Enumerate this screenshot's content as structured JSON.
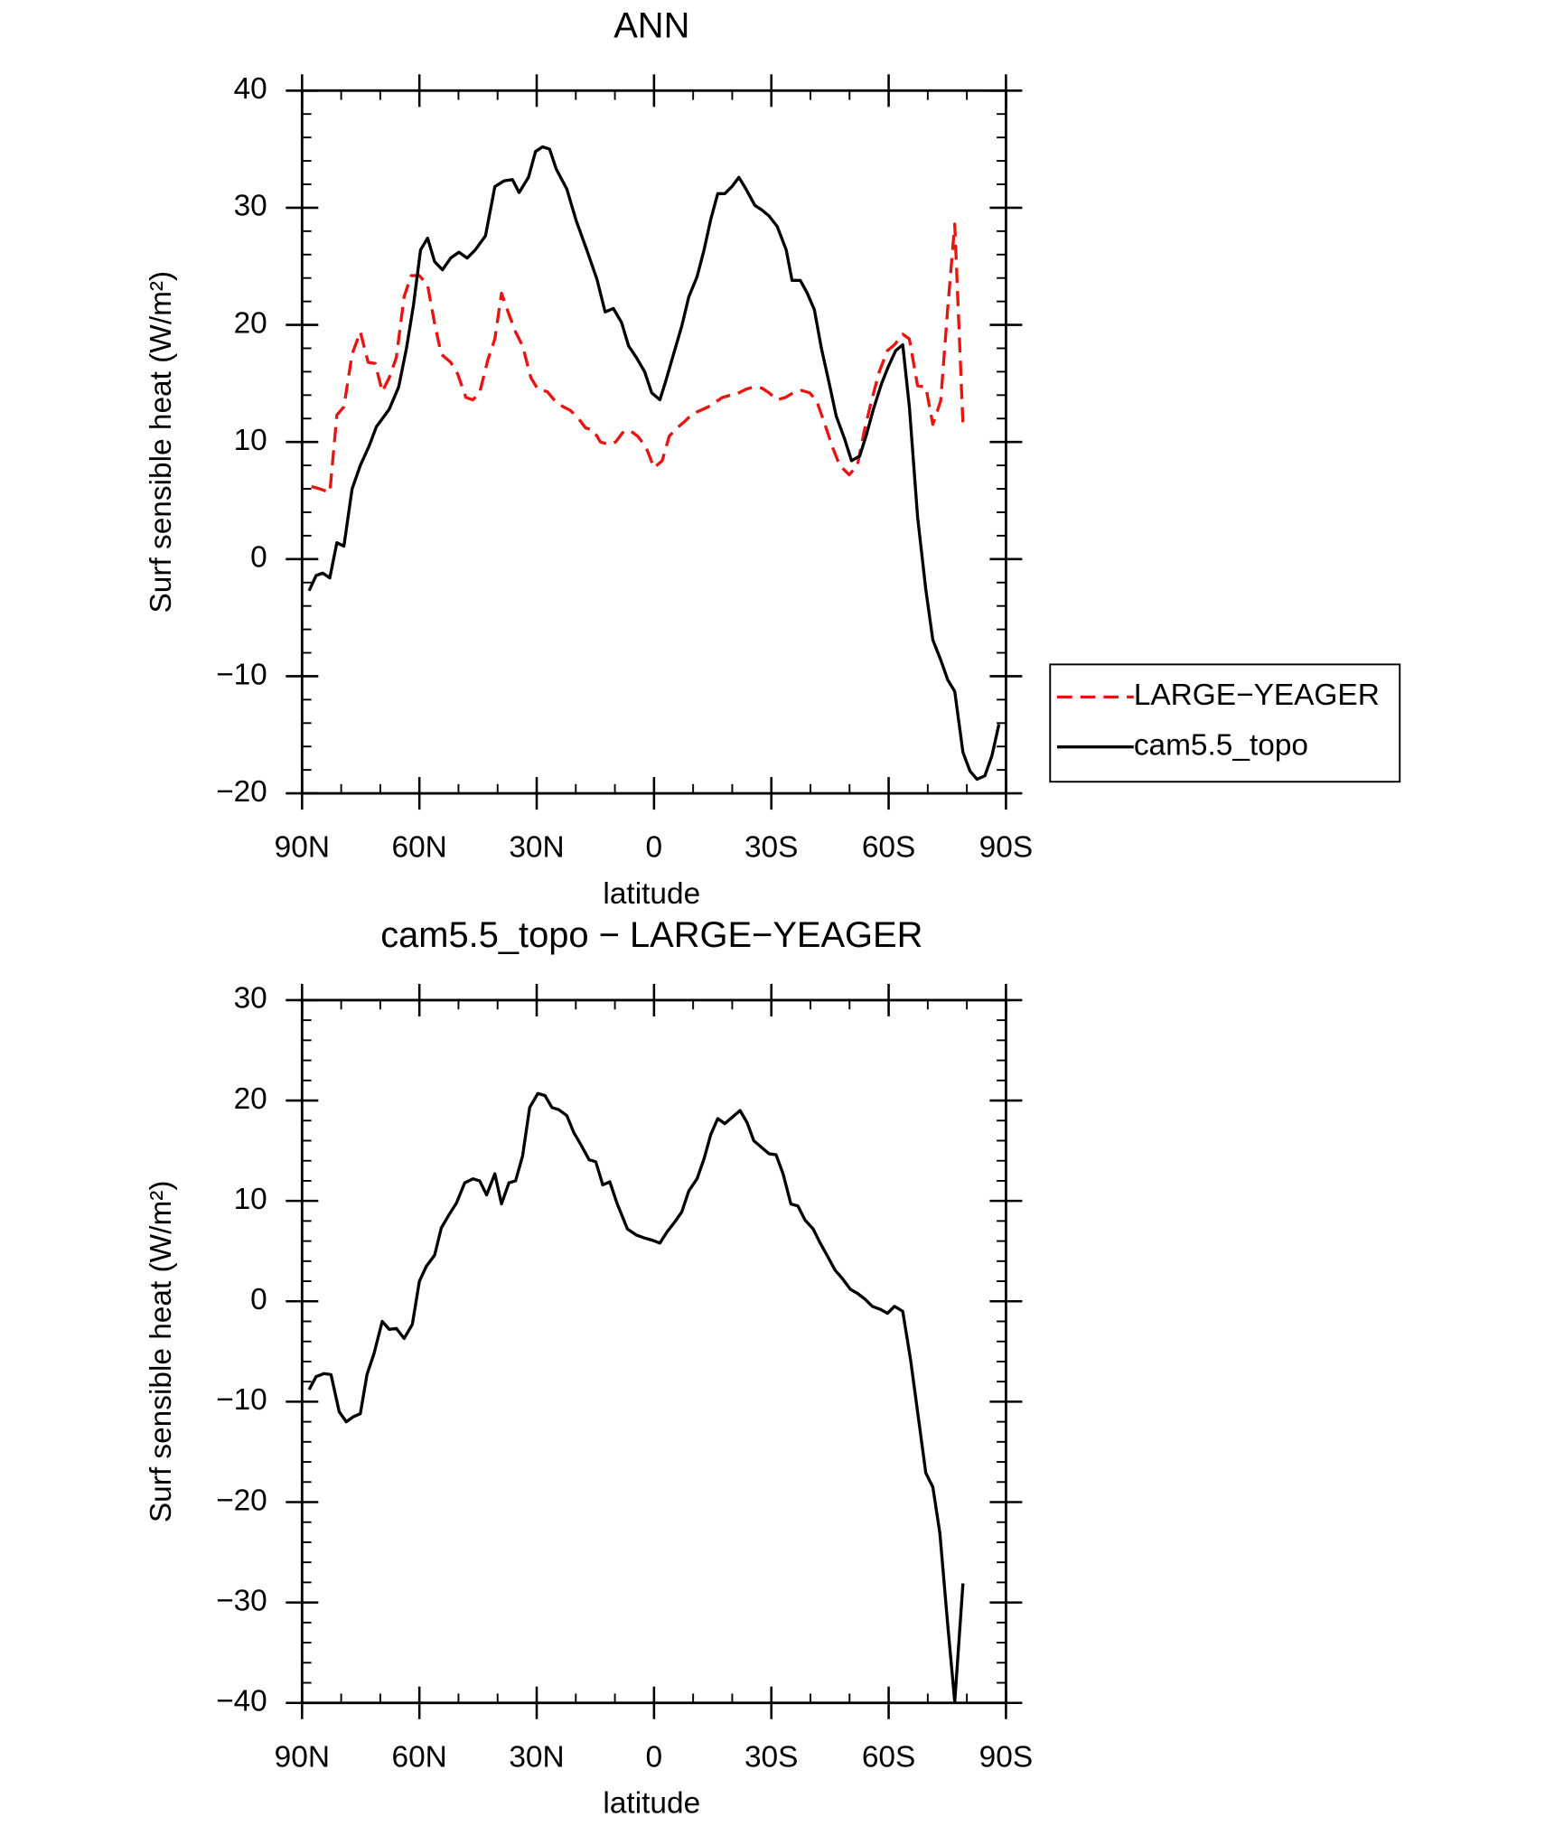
{
  "chart_data": [
    {
      "type": "line",
      "title": "ANN",
      "xlabel": "latitude",
      "ylabel": "Surf sensible heat (W/m²)",
      "xlim": [
        90,
        -90
      ],
      "xticks": [
        {
          "value": 90,
          "label": "90N"
        },
        {
          "value": 60,
          "label": "60N"
        },
        {
          "value": 30,
          "label": "30N"
        },
        0,
        {
          "value": -30,
          "label": "30S"
        },
        {
          "value": -60,
          "label": "60S"
        },
        {
          "value": -90,
          "label": "90S"
        }
      ],
      "ylim": [
        -20,
        40
      ],
      "yticks": [
        {
          "value": -20,
          "label": "−20"
        },
        {
          "value": -10,
          "label": "−10"
        },
        0,
        10,
        20,
        30,
        40
      ],
      "legend": "right",
      "series": [
        {
          "name": "LARGE−YEAGER",
          "color": "#e8140f",
          "dash": true,
          "x": [
            87.6,
            85.5,
            82.9,
            81.1,
            79.3,
            77.2,
            75.1,
            73.1,
            71.3,
            69.5,
            67.7,
            65.9,
            63.9,
            62.1,
            60.0,
            57.9,
            56.1,
            54.4,
            52.0,
            50.2,
            48.1,
            46.3,
            44.6,
            42.5,
            40.7,
            39.0,
            37.1,
            35.4,
            33.6,
            31.5,
            29.7,
            27.3,
            25.3,
            23.2,
            21.4,
            19.3,
            17.5,
            15.5,
            13.7,
            11.6,
            9.8,
            8.0,
            6.2,
            4.2,
            2.1,
            0.0,
            -2.1,
            -3.9,
            -5.9,
            -8.0,
            -9.8,
            -11.9,
            -13.9,
            -15.7,
            -17.5,
            -19.6,
            -21.7,
            -23.5,
            -25.5,
            -27.6,
            -29.4,
            -31.5,
            -33.6,
            -35.6,
            -37.7,
            -39.8,
            -41.6,
            -43.7,
            -45.7,
            -47.5,
            -49.9,
            -52.0,
            -53.8,
            -55.6,
            -57.6,
            -59.7,
            -61.5,
            -63.6,
            -65.3,
            -67.4,
            -69.5,
            -71.3,
            -73.3,
            -75.1,
            -76.9,
            -79.0
          ],
          "values": [
            6.2,
            6.0,
            5.7,
            12.3,
            13.0,
            17.5,
            19.4,
            16.8,
            16.7,
            14.3,
            15.5,
            17.2,
            22.4,
            24.2,
            24.2,
            23.4,
            20.1,
            17.5,
            16.8,
            15.8,
            13.8,
            13.6,
            14.2,
            17.0,
            18.8,
            22.7,
            20.9,
            19.4,
            18.2,
            15.5,
            14.5,
            14.3,
            13.5,
            13.0,
            12.7,
            12.0,
            11.2,
            11.0,
            10.0,
            9.8,
            10.0,
            10.8,
            11.0,
            10.5,
            9.6,
            7.8,
            8.4,
            10.5,
            11.2,
            11.8,
            12.4,
            12.7,
            13.0,
            13.4,
            13.8,
            14.0,
            14.2,
            14.5,
            14.7,
            14.6,
            14.2,
            13.6,
            13.8,
            14.2,
            14.4,
            14.2,
            13.5,
            11.5,
            9.5,
            8.0,
            7.2,
            8.0,
            11.0,
            13.5,
            16.0,
            17.8,
            18.3,
            19.2,
            18.8,
            14.8,
            14.7,
            11.5,
            13.5,
            21.4,
            28.6,
            11.5
          ]
        },
        {
          "name": "cam5.5_topo",
          "color": "#000000",
          "dash": false,
          "x": [
            88.2,
            86.4,
            84.7,
            82.9,
            81.1,
            79.3,
            77.2,
            75.1,
            72.8,
            71.0,
            67.7,
            65.3,
            63.3,
            61.5,
            59.7,
            57.9,
            56.1,
            54.1,
            52.0,
            49.9,
            47.8,
            45.7,
            43.1,
            40.7,
            38.3,
            36.2,
            34.5,
            32.1,
            30.3,
            28.5,
            26.7,
            25.0,
            22.3,
            19.9,
            17.2,
            14.6,
            12.5,
            10.4,
            8.3,
            6.5,
            4.5,
            2.4,
            0.6,
            -1.5,
            -3.0,
            -5.0,
            -7.1,
            -8.9,
            -11.0,
            -12.8,
            -14.5,
            -16.3,
            -18.1,
            -19.9,
            -21.7,
            -23.5,
            -25.8,
            -27.6,
            -29.4,
            -31.5,
            -33.8,
            -35.3,
            -37.4,
            -39.2,
            -41.0,
            -42.8,
            -44.8,
            -46.6,
            -48.7,
            -50.5,
            -52.6,
            -54.3,
            -56.1,
            -58.2,
            -60.0,
            -61.8,
            -63.6,
            -65.3,
            -67.4,
            -69.5,
            -71.3,
            -73.3,
            -75.1,
            -76.9,
            -79.0,
            -80.8,
            -82.6,
            -84.6,
            -86.4,
            -88.2
          ],
          "values": [
            -2.7,
            -1.4,
            -1.2,
            -1.6,
            1.4,
            1.1,
            6.0,
            8.0,
            9.7,
            11.3,
            12.8,
            14.7,
            18.0,
            21.7,
            26.4,
            27.4,
            25.4,
            24.7,
            25.7,
            26.2,
            25.7,
            26.4,
            27.6,
            31.8,
            32.3,
            32.4,
            31.3,
            32.6,
            34.8,
            35.2,
            35.0,
            33.3,
            31.6,
            28.9,
            26.4,
            23.9,
            21.1,
            21.4,
            20.2,
            18.2,
            17.2,
            16.0,
            14.2,
            13.6,
            15.2,
            17.5,
            19.9,
            22.4,
            24.1,
            26.4,
            29.0,
            31.2,
            31.2,
            31.8,
            32.6,
            31.6,
            30.2,
            29.8,
            29.3,
            28.4,
            26.4,
            23.8,
            23.8,
            22.7,
            21.3,
            18.0,
            15.0,
            12.2,
            10.3,
            8.4,
            8.8,
            10.6,
            12.8,
            15.0,
            16.5,
            17.8,
            18.3,
            13.0,
            3.6,
            -2.6,
            -6.9,
            -8.6,
            -10.3,
            -11.3,
            -16.5,
            -18.1,
            -18.8,
            -18.5,
            -16.8,
            -14.1
          ]
        }
      ]
    },
    {
      "type": "line",
      "title": "cam5.5_topo − LARGE−YEAGER",
      "xlabel": "latitude",
      "ylabel": "Surf sensible heat (W/m²)",
      "xlim": [
        90,
        -90
      ],
      "xticks": [
        {
          "value": 90,
          "label": "90N"
        },
        {
          "value": 60,
          "label": "60N"
        },
        {
          "value": 30,
          "label": "30N"
        },
        0,
        {
          "value": -30,
          "label": "30S"
        },
        {
          "value": -60,
          "label": "60S"
        },
        {
          "value": -90,
          "label": "90S"
        }
      ],
      "ylim": [
        -40,
        30
      ],
      "yticks": [
        {
          "value": -40,
          "label": "−40"
        },
        {
          "value": -30,
          "label": "−30"
        },
        {
          "value": -20,
          "label": "−20"
        },
        {
          "value": -10,
          "label": "−10"
        },
        0,
        10,
        20,
        30
      ],
      "series": [
        {
          "color": "#000000",
          "dash": false,
          "x": [
            88.2,
            86.4,
            84.4,
            82.6,
            80.5,
            78.7,
            76.9,
            75.1,
            73.4,
            71.6,
            69.5,
            67.7,
            65.9,
            63.9,
            61.8,
            60.0,
            58.2,
            56.1,
            54.4,
            52.3,
            50.5,
            48.4,
            46.3,
            44.6,
            42.8,
            40.7,
            39.0,
            37.1,
            35.4,
            33.6,
            31.8,
            29.7,
            27.9,
            26.1,
            24.4,
            22.3,
            20.5,
            18.7,
            16.6,
            14.9,
            13.1,
            11.3,
            9.5,
            6.8,
            4.5,
            2.4,
            0.6,
            -1.5,
            -3.3,
            -5.3,
            -7.1,
            -8.9,
            -11.0,
            -12.8,
            -14.5,
            -16.3,
            -18.1,
            -19.9,
            -22.0,
            -23.8,
            -25.5,
            -27.3,
            -29.4,
            -31.2,
            -33.0,
            -35.0,
            -36.8,
            -38.6,
            -40.7,
            -42.5,
            -44.5,
            -46.3,
            -48.1,
            -50.2,
            -52.0,
            -54.0,
            -55.8,
            -57.9,
            -59.7,
            -61.5,
            -63.6,
            -65.6,
            -67.4,
            -69.5,
            -71.3,
            -73.1,
            -75.1,
            -76.9,
            -79.0
          ],
          "values": [
            -8.8,
            -7.5,
            -7.2,
            -7.3,
            -11.0,
            -12.0,
            -11.5,
            -11.2,
            -7.3,
            -5.2,
            -2.0,
            -2.8,
            -2.7,
            -3.7,
            -2.3,
            2.0,
            3.5,
            4.6,
            7.3,
            8.7,
            9.8,
            11.8,
            12.2,
            12.0,
            10.6,
            12.7,
            9.7,
            11.8,
            12.0,
            14.5,
            19.3,
            20.7,
            20.5,
            19.3,
            19.1,
            18.5,
            16.8,
            15.6,
            14.1,
            13.9,
            11.6,
            11.9,
            9.8,
            7.2,
            6.6,
            6.3,
            6.1,
            5.8,
            6.9,
            7.9,
            8.9,
            11.0,
            12.2,
            14.2,
            16.6,
            18.2,
            17.7,
            18.3,
            19.0,
            17.8,
            16.0,
            15.4,
            14.7,
            14.6,
            12.7,
            9.7,
            9.5,
            8.1,
            7.2,
            5.8,
            4.4,
            3.1,
            2.3,
            1.2,
            0.8,
            0.2,
            -0.5,
            -0.8,
            -1.2,
            -0.5,
            -1.0,
            -5.8,
            -11.0,
            -17.1,
            -18.5,
            -23.1,
            -32.2,
            -39.9,
            -28.1
          ]
        }
      ]
    }
  ]
}
